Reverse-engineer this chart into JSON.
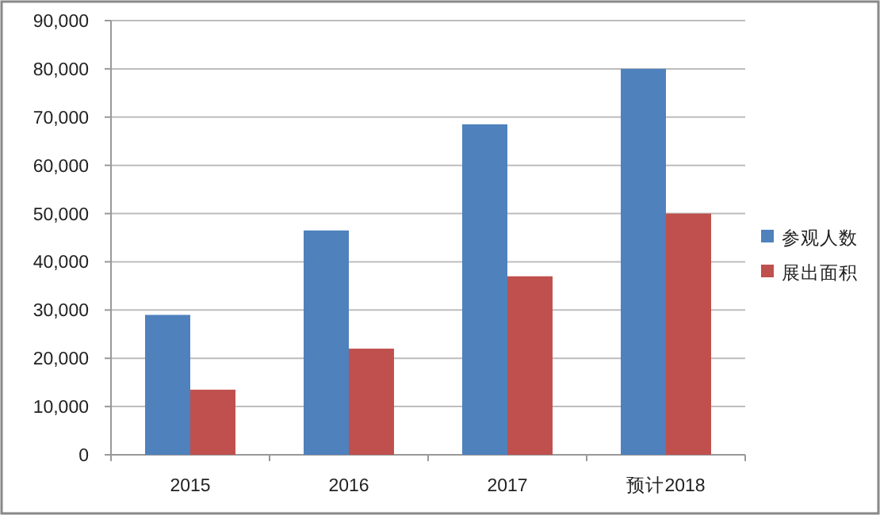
{
  "chart_data": {
    "type": "bar",
    "categories": [
      "2015",
      "2016",
      "2017",
      "预计2018"
    ],
    "series": [
      {
        "name": "参观人数",
        "color": "#4f81bd",
        "values": [
          29000,
          46500,
          68500,
          80000
        ]
      },
      {
        "name": "展出面积",
        "color": "#c0504d",
        "values": [
          13500,
          22000,
          37000,
          50000
        ]
      }
    ],
    "ylim": [
      0,
      90000
    ],
    "yticks": [
      {
        "value": 0,
        "label": "0"
      },
      {
        "value": 10000,
        "label": "10,000"
      },
      {
        "value": 20000,
        "label": "20,000"
      },
      {
        "value": 30000,
        "label": "30,000"
      },
      {
        "value": 40000,
        "label": "40,000"
      },
      {
        "value": 50000,
        "label": "50,000"
      },
      {
        "value": 60000,
        "label": "60,000"
      },
      {
        "value": 70000,
        "label": "70,000"
      },
      {
        "value": 80000,
        "label": "80,000"
      },
      {
        "value": 90000,
        "label": "90,000"
      }
    ],
    "grid": "y",
    "legend": "right"
  }
}
